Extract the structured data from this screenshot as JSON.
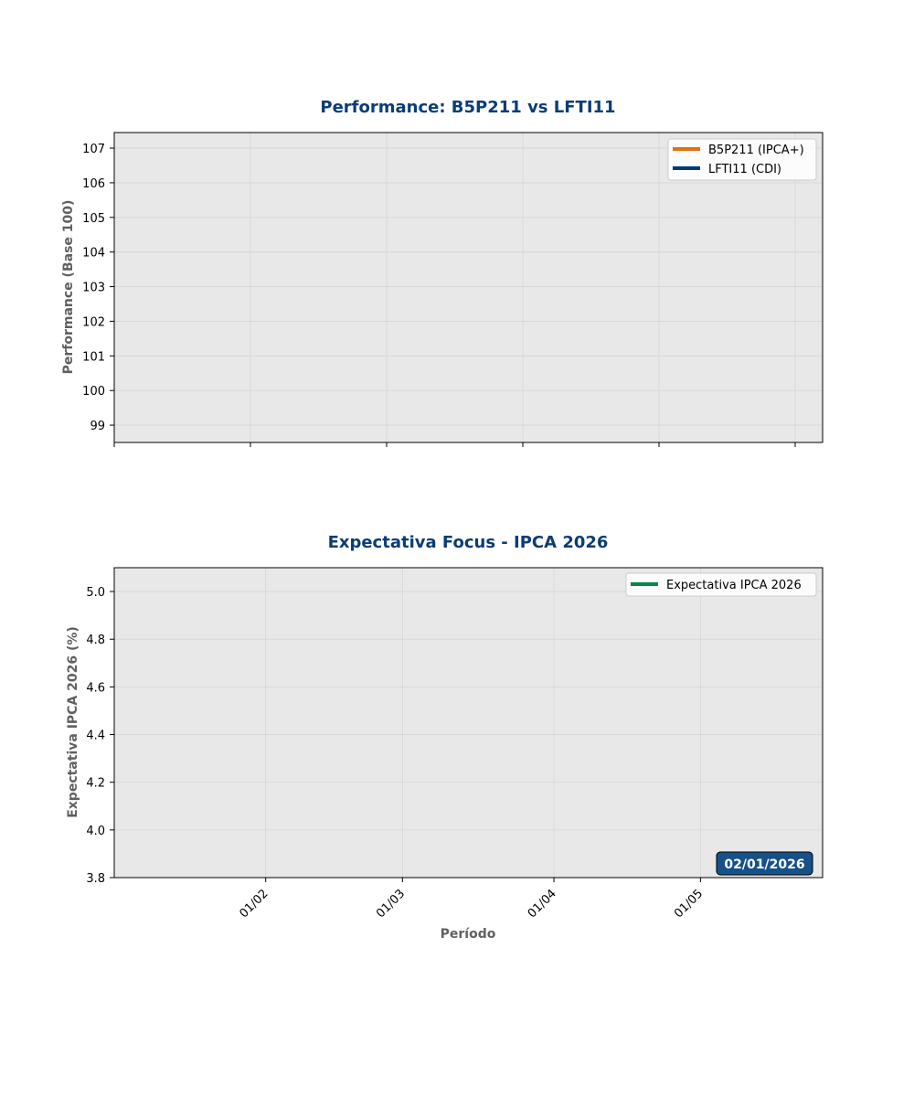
{
  "chart_data": [
    {
      "type": "line",
      "title": "Performance: B5P211 vs LFTI11",
      "xlabel": "",
      "ylabel": "Performance (Base 100)",
      "ylim": [
        98.5,
        107.45
      ],
      "yticks": [
        99,
        100,
        101,
        102,
        103,
        104,
        105,
        106,
        107
      ],
      "xticks": [
        "",
        "",
        "",
        "",
        "",
        ""
      ],
      "grid": true,
      "legend_position": "top-right",
      "series": [
        {
          "name": "B5P211 (IPCA+)",
          "color": "#e07010",
          "x": [],
          "y": []
        },
        {
          "name": "LFTI11 (CDI)",
          "color": "#003a78",
          "x": [],
          "y": []
        }
      ]
    },
    {
      "type": "line",
      "title": "Expectativa Focus - IPCA 2026",
      "xlabel": "Período",
      "ylabel": "Expectativa IPCA 2026 (%)",
      "ylim": [
        3.8,
        5.1
      ],
      "yticks": [
        "3.8",
        "4.0",
        "4.2",
        "4.4",
        "4.6",
        "4.8",
        "5.0"
      ],
      "xticks": [
        "01/02",
        "01/03",
        "01/04",
        "01/05"
      ],
      "grid": true,
      "legend_position": "top-right",
      "series": [
        {
          "name": "Expectativa IPCA 2026",
          "color": "#00884a",
          "x": [],
          "y": []
        }
      ],
      "annotation": {
        "text": "02/01/2026",
        "color": "#17518a"
      }
    }
  ],
  "colors": {
    "title": "#0a3d75",
    "axis_label": "#606060",
    "plot_bg": "#e8e8e8",
    "grid": "#d6d6d6"
  }
}
